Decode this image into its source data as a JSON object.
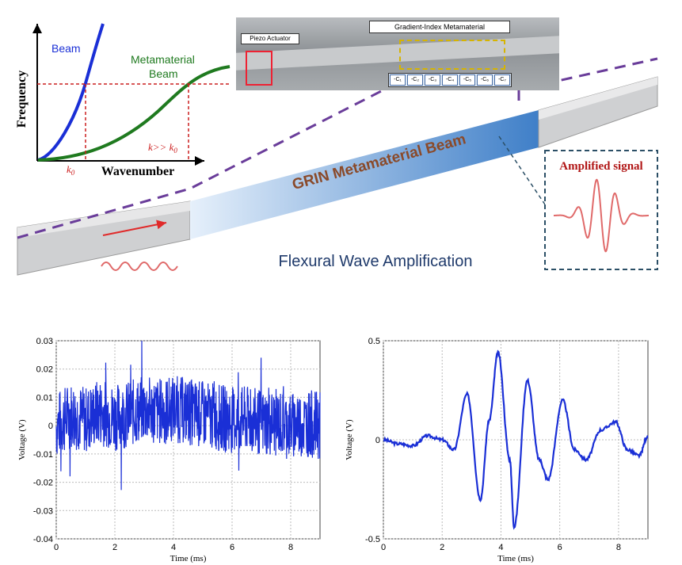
{
  "dispersion": {
    "beam_label": "Beam",
    "metamaterial_label_line1": "Metamaterial",
    "metamaterial_label_line2": "Beam",
    "y_label": "Frequency",
    "x_label": "Wavenumber",
    "k0_label": "k",
    "k0_sub": "0",
    "k_label": "k>> k",
    "k_sub": "0",
    "colors": {
      "beam": "#1a2fd6",
      "metamaterial": "#1f7a1f",
      "marker": "#cc1f1f"
    }
  },
  "photo": {
    "title": "Gradient-Index Metamaterial",
    "actuator_label": "Piezo Actuator",
    "cells": [
      "-C₁",
      "-C₂",
      "-C₃",
      "-C₄",
      "-C₅",
      "-C₆",
      "-C₇"
    ]
  },
  "beam_diagram": {
    "grin_label": "GRIN Metamaterial Beam",
    "amplified_label": "Amplified signal",
    "title": "Flexural Wave Amplification",
    "colors": {
      "grin_text": "#8a4a2a",
      "dashed": "#6a3d9a",
      "title": "#1f3a6b",
      "signal": "#e06a6a",
      "amplified_title": "#b01515"
    }
  },
  "chart_data": [
    {
      "type": "line",
      "xlabel": "Time (ms)",
      "ylabel": "Voltage (V)",
      "xlim": [
        0,
        9
      ],
      "ylim": [
        -0.04,
        0.03
      ],
      "xticks": [
        "0",
        "2",
        "4",
        "6",
        "8"
      ],
      "yticks": [
        "0.03",
        "0.02",
        "0.01",
        "0",
        "-0.01",
        "-0.02",
        "-0.03",
        "-0.04"
      ],
      "grid": true,
      "series": [
        {
          "color": "#1a2fd6",
          "x": [
            0,
            0.5,
            1,
            1.5,
            2,
            2.5,
            3,
            3.5,
            4,
            4.5,
            5,
            5.5,
            6,
            6.5,
            7,
            7.5,
            8,
            8.5,
            9
          ],
          "y": [
            0.0,
            0.004,
            0.002,
            0.005,
            0.003,
            0.004,
            0.006,
            0.005,
            0.006,
            0.005,
            0.004,
            0.003,
            0.002,
            0.002,
            0.001,
            0.001,
            0.0,
            0.001,
            0.0
          ],
          "noise_amplitude": 0.012
        }
      ]
    },
    {
      "type": "line",
      "xlabel": "Time (ms)",
      "ylabel": "Voltage (V)",
      "xlim": [
        0,
        9
      ],
      "ylim": [
        -0.5,
        0.5
      ],
      "xticks": [
        "0",
        "2",
        "4",
        "6",
        "8"
      ],
      "yticks": [
        "0.5",
        "0",
        "-0.5"
      ],
      "grid": true,
      "series": [
        {
          "color": "#1a2fd6",
          "x": [
            0,
            0.5,
            1,
            1.5,
            2,
            2.4,
            2.85,
            3.3,
            3.6,
            3.9,
            4.3,
            4.45,
            4.9,
            5.3,
            5.6,
            6.1,
            6.5,
            6.9,
            7.4,
            7.9,
            8.3,
            8.7,
            9
          ],
          "y": [
            0.0,
            -0.02,
            -0.03,
            0.02,
            0.0,
            -0.05,
            0.23,
            -0.3,
            0.1,
            0.44,
            -0.1,
            -0.44,
            0.3,
            -0.1,
            -0.2,
            0.2,
            -0.05,
            -0.1,
            0.05,
            0.09,
            -0.05,
            -0.08,
            0.02
          ]
        }
      ]
    }
  ]
}
